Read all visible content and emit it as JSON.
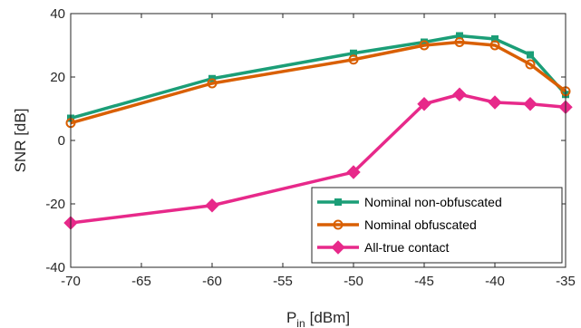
{
  "chart_data": {
    "type": "line",
    "xlabel": "P",
    "xlabel_sub": "in",
    "xlabel_unit": "[dBm]",
    "ylabel": "SNR [dB]",
    "xlim": [
      -70,
      -35
    ],
    "ylim": [
      -40,
      40
    ],
    "xticks": [
      -70,
      -65,
      -60,
      -55,
      -50,
      -45,
      -40,
      -35
    ],
    "yticks": [
      -40,
      -20,
      0,
      20,
      40
    ],
    "legend_position": "bottom-right",
    "grid": false,
    "series": [
      {
        "name": "Nominal non-obfuscated",
        "color": "#1b9e77",
        "marker": "square",
        "x": [
          -70,
          -60,
          -50,
          -45,
          -42.5,
          -40,
          -37.5,
          -35
        ],
        "y": [
          7,
          19.5,
          27.5,
          31,
          33,
          32,
          27,
          14.5
        ]
      },
      {
        "name": "Nominal obfuscated",
        "color": "#d95f02",
        "marker": "circle",
        "x": [
          -70,
          -60,
          -50,
          -45,
          -42.5,
          -40,
          -37.5,
          -35
        ],
        "y": [
          5.5,
          18,
          25.5,
          30,
          31,
          30,
          24,
          15.5
        ]
      },
      {
        "name": "All-true contact",
        "color": "#e7298a",
        "marker": "diamond",
        "x": [
          -70,
          -60,
          -50,
          -45,
          -42.5,
          -40,
          -37.5,
          -35
        ],
        "y": [
          -26,
          -20.5,
          -10,
          11.5,
          14.5,
          12,
          11.5,
          10.5
        ]
      }
    ]
  }
}
